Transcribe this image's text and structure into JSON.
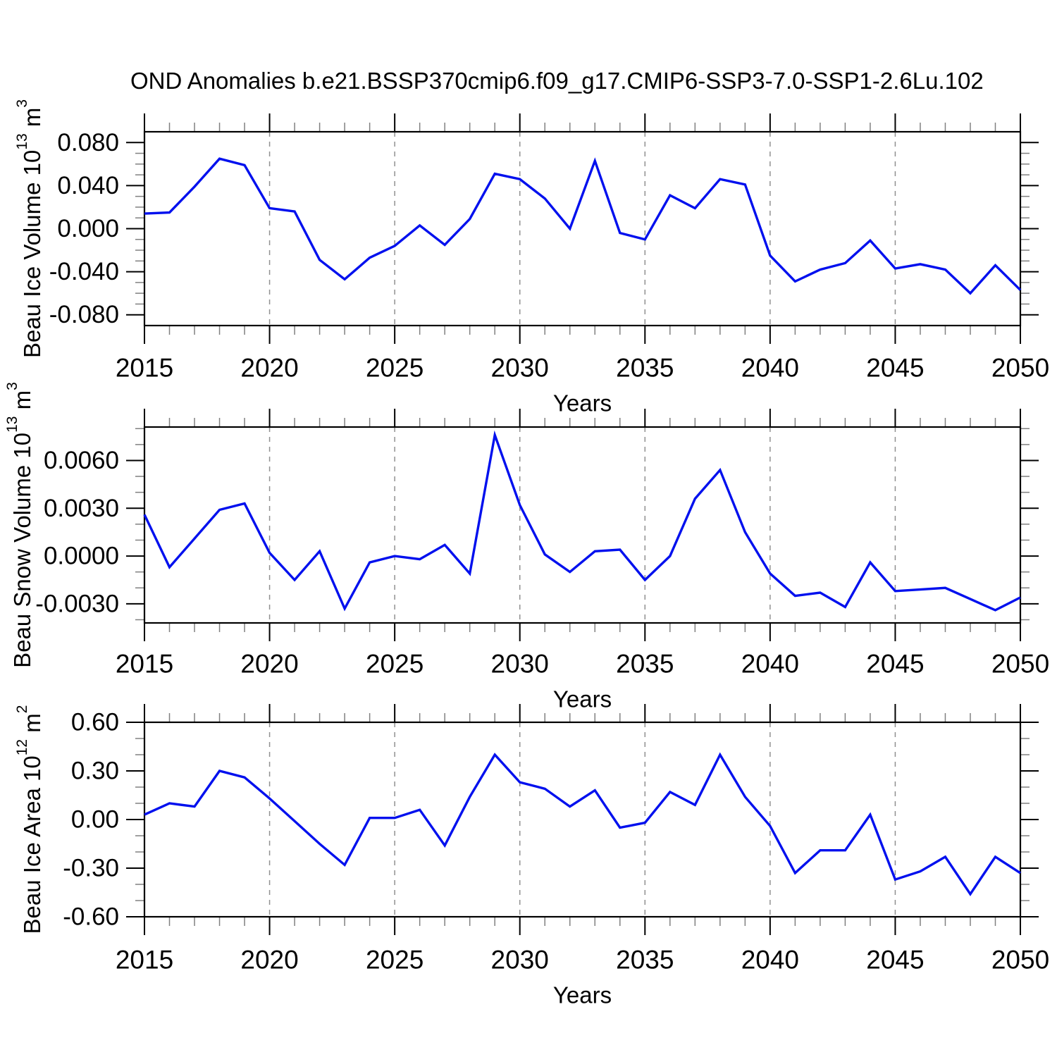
{
  "title": "OND Anomalies b.e21.BSSP370cmip6.f09_g17.CMIP6-SSP3-7.0-SSP1-2.6Lu.102",
  "colors": {
    "line": "#0010EE",
    "axis": "#000000",
    "minor_tick": "#808080",
    "grid": "#909090"
  },
  "chart_data": [
    {
      "type": "line",
      "name": "ice-volume",
      "ylabel": "Beau Ice Volume 10^13 m^3",
      "xlabel": "Years",
      "x": [
        2015,
        2016,
        2017,
        2018,
        2019,
        2020,
        2021,
        2022,
        2023,
        2024,
        2025,
        2026,
        2027,
        2028,
        2029,
        2030,
        2031,
        2032,
        2033,
        2034,
        2035,
        2036,
        2037,
        2038,
        2039,
        2040,
        2041,
        2042,
        2043,
        2044,
        2045,
        2046,
        2047,
        2048,
        2049,
        2050
      ],
      "values": [
        0.014,
        0.015,
        0.039,
        0.065,
        0.059,
        0.019,
        0.016,
        -0.029,
        -0.047,
        -0.027,
        -0.016,
        0.003,
        -0.015,
        0.009,
        0.051,
        0.046,
        0.028,
        0.0,
        0.063,
        -0.004,
        -0.01,
        0.031,
        0.019,
        0.046,
        0.041,
        -0.025,
        -0.049,
        -0.038,
        -0.032,
        -0.011,
        -0.037,
        -0.033,
        -0.038,
        -0.06,
        -0.034,
        -0.057
      ],
      "ylim": [
        -0.09,
        0.09
      ],
      "yticks_major": [
        {
          "v": 0.08,
          "label": "0.080"
        },
        {
          "v": 0.04,
          "label": "0.040"
        },
        {
          "v": 0.0,
          "label": "0.000"
        },
        {
          "v": -0.04,
          "label": "-0.040"
        },
        {
          "v": -0.08,
          "label": "-0.080"
        }
      ],
      "yticks_minor": [
        0.07,
        0.06,
        0.05,
        0.03,
        0.02,
        0.01,
        -0.01,
        -0.02,
        -0.03,
        -0.05,
        -0.06,
        -0.07
      ],
      "xticks_major": [
        2015,
        2020,
        2025,
        2030,
        2035,
        2040,
        2045,
        2050
      ],
      "grid_x": [
        2020,
        2025,
        2030,
        2035,
        2040,
        2045
      ],
      "grid": "vertical-dashed"
    },
    {
      "type": "line",
      "name": "snow-volume",
      "ylabel": "Beau Snow Volume 10^13 m^3",
      "xlabel": "Years",
      "x": [
        2015,
        2016,
        2017,
        2018,
        2019,
        2020,
        2021,
        2022,
        2023,
        2024,
        2025,
        2026,
        2027,
        2028,
        2029,
        2030,
        2031,
        2032,
        2033,
        2034,
        2035,
        2036,
        2037,
        2038,
        2039,
        2040,
        2041,
        2042,
        2043,
        2044,
        2045,
        2046,
        2047,
        2048,
        2049,
        2050
      ],
      "values": [
        0.0026,
        -0.0007,
        0.0011,
        0.0029,
        0.0033,
        0.0002,
        -0.0015,
        0.0003,
        -0.0033,
        -0.0004,
        0.0,
        -0.0002,
        0.0007,
        -0.0011,
        0.0076,
        0.0032,
        0.0001,
        -0.001,
        0.0003,
        0.0004,
        -0.0015,
        0.0,
        0.0036,
        0.0054,
        0.0015,
        -0.0011,
        -0.0025,
        -0.0023,
        -0.0032,
        -0.0004,
        -0.0022,
        -0.0021,
        -0.002,
        -0.0027,
        -0.0034,
        -0.0026
      ],
      "ylim": [
        -0.0042,
        0.0081
      ],
      "yticks_major": [
        {
          "v": 0.006,
          "label": "0.0060"
        },
        {
          "v": 0.003,
          "label": "0.0030"
        },
        {
          "v": 0.0,
          "label": "0.0000"
        },
        {
          "v": -0.003,
          "label": "-0.0030"
        }
      ],
      "yticks_minor": [
        0.008,
        0.007,
        0.005,
        0.004,
        0.002,
        0.001,
        -0.001,
        -0.002,
        -0.004
      ],
      "xticks_major": [
        2015,
        2020,
        2025,
        2030,
        2035,
        2040,
        2045,
        2050
      ],
      "grid_x": [
        2020,
        2025,
        2030,
        2035,
        2040,
        2045
      ],
      "grid": "vertical-dashed"
    },
    {
      "type": "line",
      "name": "ice-area",
      "ylabel": "Beau Ice Area 10^12 m^2",
      "xlabel": "Years",
      "x": [
        2015,
        2016,
        2017,
        2018,
        2019,
        2020,
        2021,
        2022,
        2023,
        2024,
        2025,
        2026,
        2027,
        2028,
        2029,
        2030,
        2031,
        2032,
        2033,
        2034,
        2035,
        2036,
        2037,
        2038,
        2039,
        2040,
        2041,
        2042,
        2043,
        2044,
        2045,
        2046,
        2047,
        2048,
        2049,
        2050
      ],
      "values": [
        0.03,
        0.1,
        0.08,
        0.3,
        0.26,
        0.13,
        -0.01,
        -0.15,
        -0.28,
        0.01,
        0.01,
        0.06,
        -0.16,
        0.14,
        0.4,
        0.23,
        0.19,
        0.08,
        0.18,
        -0.05,
        -0.02,
        0.17,
        0.09,
        0.4,
        0.14,
        -0.04,
        -0.33,
        -0.19,
        -0.19,
        0.03,
        -0.37,
        -0.32,
        -0.23,
        -0.46,
        -0.23,
        -0.33
      ],
      "ylim": [
        -0.6,
        0.6
      ],
      "yticks_major": [
        {
          "v": 0.6,
          "label": "0.60"
        },
        {
          "v": 0.3,
          "label": "0.30"
        },
        {
          "v": 0.0,
          "label": "0.00"
        },
        {
          "v": -0.3,
          "label": "-0.30"
        },
        {
          "v": -0.6,
          "label": "-0.60"
        }
      ],
      "yticks_minor": [
        0.5,
        0.4,
        0.2,
        0.1,
        -0.1,
        -0.2,
        -0.4,
        -0.5
      ],
      "xticks_major": [
        2015,
        2020,
        2025,
        2030,
        2035,
        2040,
        2045,
        2050
      ],
      "grid_x": [
        2020,
        2025,
        2030,
        2035,
        2040,
        2045
      ],
      "grid": "vertical-dashed"
    }
  ]
}
